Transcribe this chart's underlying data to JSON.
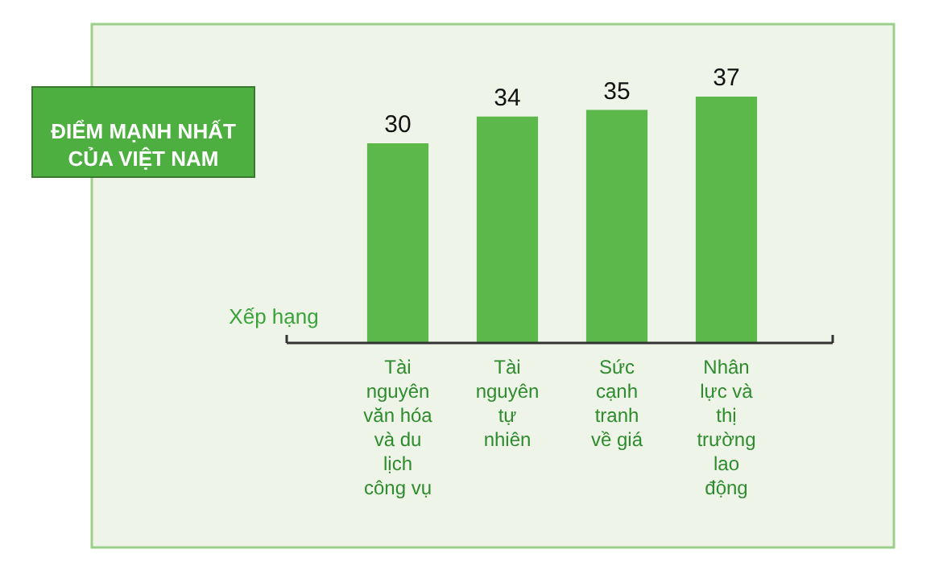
{
  "chart_data": {
    "type": "bar",
    "title": "ĐIỂM MẠNH NHẤT CỦA VIỆT NAM",
    "ylabel": "Xếp hạng",
    "categories": [
      "Tài nguyên văn hóa và du lịch công vụ",
      "Tài nguyên tự nhiên",
      "Sức cạnh tranh về giá",
      "Nhân lực và thị trường lao động"
    ],
    "values": [
      30,
      34,
      35,
      37
    ],
    "color": "#5cb84a",
    "data_labels": true
  }
}
